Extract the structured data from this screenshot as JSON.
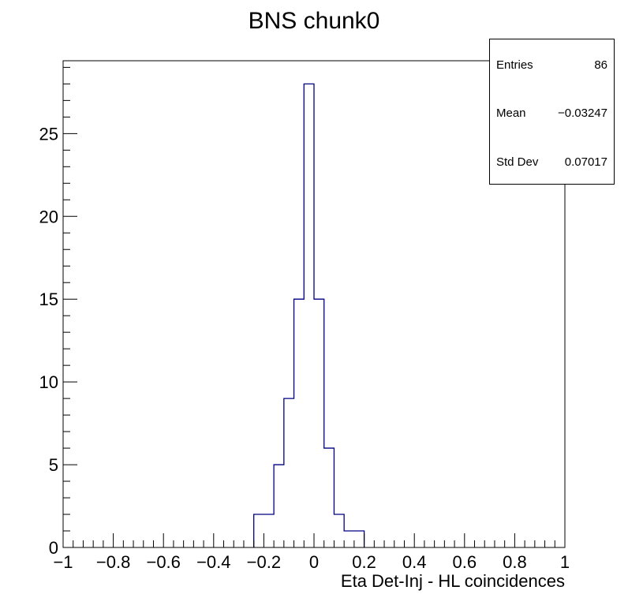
{
  "chart_data": {
    "type": "histogram",
    "title": "BNS chunk0",
    "xlabel": "Eta Det-Inj - HL coincidences",
    "ylabel": "",
    "xlim": [
      -1,
      1
    ],
    "ylim": [
      0,
      29.4
    ],
    "x_ticks": [
      -1,
      -0.8,
      -0.6,
      -0.4,
      -0.2,
      0,
      0.2,
      0.4,
      0.6,
      0.8,
      1
    ],
    "x_tick_labels": [
      "−1",
      "−0.8",
      "−0.6",
      "−0.4",
      "−0.2",
      "0",
      "0.2",
      "0.4",
      "0.6",
      "0.8",
      "1"
    ],
    "y_ticks": [
      0,
      5,
      10,
      15,
      20,
      25
    ],
    "y_tick_labels": [
      "0",
      "5",
      "10",
      "15",
      "20",
      "25"
    ],
    "bin_width": 0.04,
    "bins": [
      {
        "low": -0.24,
        "high": -0.2,
        "count": 2
      },
      {
        "low": -0.2,
        "high": -0.16,
        "count": 2
      },
      {
        "low": -0.16,
        "high": -0.12,
        "count": 5
      },
      {
        "low": -0.12,
        "high": -0.08,
        "count": 9
      },
      {
        "low": -0.08,
        "high": -0.04,
        "count": 15
      },
      {
        "low": -0.04,
        "high": 0.0,
        "count": 28
      },
      {
        "low": 0.0,
        "high": 0.04,
        "count": 15
      },
      {
        "low": 0.04,
        "high": 0.08,
        "count": 6
      },
      {
        "low": 0.08,
        "high": 0.12,
        "count": 2
      },
      {
        "low": 0.12,
        "high": 0.16,
        "count": 1
      },
      {
        "low": 0.16,
        "high": 0.2,
        "count": 1
      }
    ],
    "line_color": "#000080",
    "stats_box": {
      "entries_label": "Entries",
      "entries_value": "86",
      "mean_label": "Mean",
      "mean_value": "−0.03247",
      "stddev_label": "Std Dev",
      "stddev_value": "0.07017"
    }
  }
}
